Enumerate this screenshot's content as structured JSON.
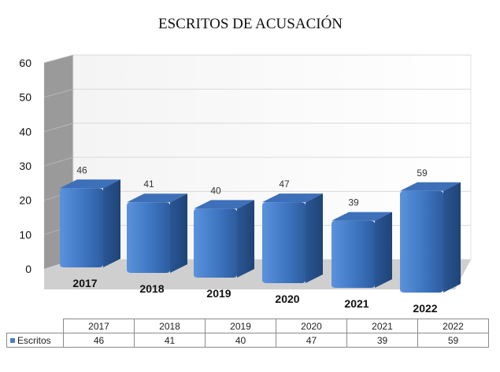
{
  "chart_data": {
    "type": "bar",
    "title": "ESCRITOS DE ACUSACIÓN",
    "categories": [
      "2017",
      "2018",
      "2019",
      "2020",
      "2021",
      "2022"
    ],
    "series": [
      {
        "name": "Escritos",
        "values": [
          46,
          41,
          40,
          47,
          39,
          59
        ]
      }
    ],
    "ylim": [
      0,
      60
    ],
    "yticks": [
      "0",
      "10",
      "20",
      "30",
      "40",
      "50",
      "60"
    ],
    "grid": true,
    "three_d": true,
    "legend": "data-table-below",
    "bar_color": "#4a7fc8"
  }
}
